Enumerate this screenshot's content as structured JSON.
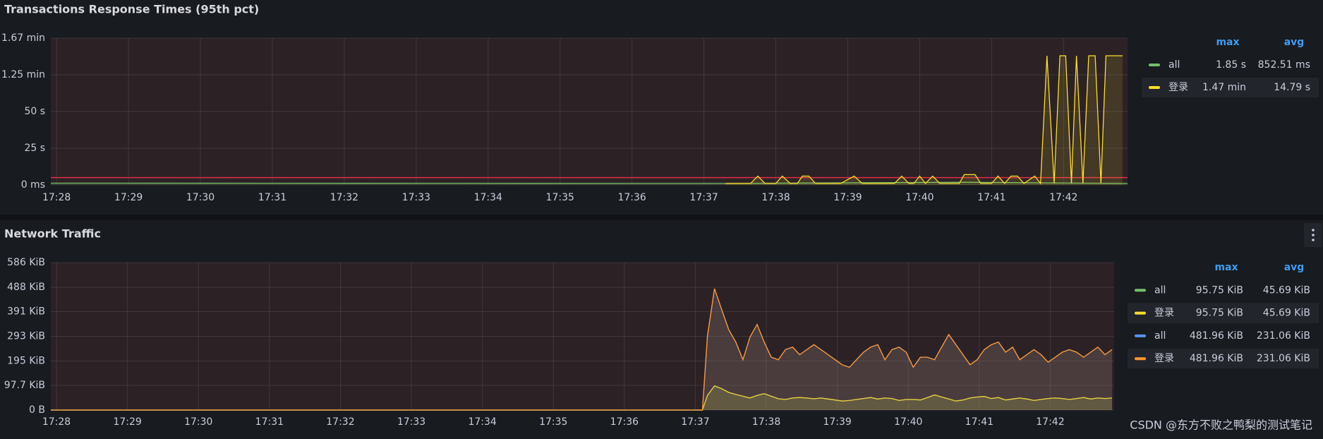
{
  "chart_data": [
    {
      "type": "line",
      "title": "Transactions Response Times (95th pct)",
      "xlim": [
        1047.92,
        1062.89
      ],
      "xticks": [
        {
          "value": 1048,
          "label": "17:28"
        },
        {
          "value": 1049,
          "label": "17:29"
        },
        {
          "value": 1050,
          "label": "17:30"
        },
        {
          "value": 1051,
          "label": "17:31"
        },
        {
          "value": 1052,
          "label": "17:32"
        },
        {
          "value": 1053,
          "label": "17:33"
        },
        {
          "value": 1054,
          "label": "17:34"
        },
        {
          "value": 1055,
          "label": "17:35"
        },
        {
          "value": 1056,
          "label": "17:36"
        },
        {
          "value": 1057,
          "label": "17:37"
        },
        {
          "value": 1058,
          "label": "17:38"
        },
        {
          "value": 1059,
          "label": "17:39"
        },
        {
          "value": 1060,
          "label": "17:40"
        },
        {
          "value": 1061,
          "label": "17:41"
        },
        {
          "value": 1062,
          "label": "17:42"
        }
      ],
      "ylim": [
        0,
        100
      ],
      "yticks": [
        {
          "value": 0,
          "label": "0 ms"
        },
        {
          "value": 25,
          "label": "25 s"
        },
        {
          "value": 50,
          "label": "50 s"
        },
        {
          "value": 75,
          "label": "1.25 min"
        },
        {
          "value": 100,
          "label": "1.67 min"
        }
      ],
      "grid": true,
      "threshold": {
        "value": 5,
        "color": "#e02f44"
      },
      "legend_columns": [
        "max",
        "avg"
      ],
      "series": [
        {
          "name": "all",
          "color": "#73bf69",
          "stats": [
            "1.85 s",
            "852.51 ms"
          ],
          "x": [
            1047.92,
            1057.3,
            1060.62,
            1062.89
          ],
          "values": [
            1.2,
            1.0,
            1.85,
            1.0
          ]
        },
        {
          "name": "登录",
          "color": "#fade2a",
          "stats": [
            "1.47 min",
            "14.79 s"
          ],
          "x": [
            1057.3,
            1057.65,
            1057.75,
            1057.85,
            1058.0,
            1058.09,
            1058.2,
            1058.3,
            1058.37,
            1058.46,
            1058.55,
            1058.9,
            1059.09,
            1059.2,
            1059.65,
            1059.75,
            1059.85,
            1059.92,
            1060.0,
            1060.08,
            1060.18,
            1060.28,
            1060.55,
            1060.62,
            1060.77,
            1060.85,
            1061.0,
            1061.09,
            1061.18,
            1061.27,
            1061.36,
            1061.45,
            1061.6,
            1061.68,
            1061.77,
            1061.87,
            1061.95,
            1062.03,
            1062.11,
            1062.18,
            1062.27,
            1062.35,
            1062.44,
            1062.52,
            1062.59,
            1062.82
          ],
          "values": [
            1,
            1,
            6,
            1,
            1,
            6,
            1,
            1,
            6,
            6,
            1,
            1,
            6,
            1,
            1,
            6,
            1,
            1,
            6,
            1,
            6,
            1,
            1,
            7,
            7,
            1,
            1,
            6,
            1,
            6,
            6,
            1,
            6,
            1,
            88,
            1,
            88,
            88,
            1,
            88,
            1,
            88,
            88,
            1,
            88,
            88
          ]
        }
      ]
    },
    {
      "type": "line",
      "title": "Network Traffic",
      "xlim": [
        1047.92,
        1062.9
      ],
      "xticks": [
        {
          "value": 1048,
          "label": "17:28"
        },
        {
          "value": 1049,
          "label": "17:29"
        },
        {
          "value": 1050,
          "label": "17:30"
        },
        {
          "value": 1051,
          "label": "17:31"
        },
        {
          "value": 1052,
          "label": "17:32"
        },
        {
          "value": 1053,
          "label": "17:33"
        },
        {
          "value": 1054,
          "label": "17:34"
        },
        {
          "value": 1055,
          "label": "17:35"
        },
        {
          "value": 1056,
          "label": "17:36"
        },
        {
          "value": 1057,
          "label": "17:37"
        },
        {
          "value": 1058,
          "label": "17:38"
        },
        {
          "value": 1059,
          "label": "17:39"
        },
        {
          "value": 1060,
          "label": "17:40"
        },
        {
          "value": 1061,
          "label": "17:41"
        },
        {
          "value": 1062,
          "label": "17:42"
        }
      ],
      "ylim": [
        0,
        586
      ],
      "yticks": [
        {
          "value": 0,
          "label": "0 B"
        },
        {
          "value": 97.7,
          "label": "97.7 KiB"
        },
        {
          "value": 195,
          "label": "195 KiB"
        },
        {
          "value": 293,
          "label": "293 KiB"
        },
        {
          "value": 391,
          "label": "391 KiB"
        },
        {
          "value": 488,
          "label": "488 KiB"
        },
        {
          "value": 586,
          "label": "586 KiB"
        }
      ],
      "grid": true,
      "legend_columns": [
        "max",
        "avg"
      ],
      "series": [
        {
          "name": "all",
          "color": "#73bf69",
          "stats": [
            "95.75 KiB",
            "45.69 KiB"
          ],
          "x": [
            1047.92,
            1057.1,
            1057.17,
            1057.27,
            1057.37,
            1057.47,
            1057.57,
            1057.67,
            1057.77,
            1057.87,
            1057.97,
            1058.07,
            1058.17,
            1058.27,
            1058.37,
            1058.47,
            1058.57,
            1058.67,
            1058.77,
            1058.87,
            1058.97,
            1059.07,
            1059.17,
            1059.27,
            1059.37,
            1059.47,
            1059.57,
            1059.67,
            1059.77,
            1059.87,
            1059.97,
            1060.07,
            1060.17,
            1060.27,
            1060.37,
            1060.47,
            1060.57,
            1060.67,
            1060.77,
            1060.87,
            1060.97,
            1061.07,
            1061.17,
            1061.27,
            1061.37,
            1061.47,
            1061.57,
            1061.67,
            1061.77,
            1061.87,
            1061.97,
            1062.07,
            1062.17,
            1062.27,
            1062.37,
            1062.47,
            1062.57,
            1062.67,
            1062.77,
            1062.87
          ],
          "values": [
            0,
            0,
            58,
            96,
            85,
            70,
            62,
            55,
            48,
            58,
            65,
            55,
            45,
            42,
            48,
            50,
            48,
            45,
            48,
            44,
            40,
            36,
            38,
            42,
            46,
            50,
            44,
            48,
            46,
            38,
            42,
            42,
            40,
            50,
            60,
            52,
            44,
            36,
            40,
            48,
            52,
            54,
            46,
            50,
            40,
            44,
            48,
            44,
            38,
            42,
            46,
            48,
            46,
            42,
            46,
            50,
            44,
            48,
            46,
            48
          ]
        },
        {
          "name": "登录",
          "color": "#fade2a",
          "stats": [
            "95.75 KiB",
            "45.69 KiB"
          ],
          "x": [
            1047.92,
            1057.1,
            1057.17,
            1057.27,
            1057.37,
            1057.47,
            1057.57,
            1057.67,
            1057.77,
            1057.87,
            1057.97,
            1058.07,
            1058.17,
            1058.27,
            1058.37,
            1058.47,
            1058.57,
            1058.67,
            1058.77,
            1058.87,
            1058.97,
            1059.07,
            1059.17,
            1059.27,
            1059.37,
            1059.47,
            1059.57,
            1059.67,
            1059.77,
            1059.87,
            1059.97,
            1060.07,
            1060.17,
            1060.27,
            1060.37,
            1060.47,
            1060.57,
            1060.67,
            1060.77,
            1060.87,
            1060.97,
            1061.07,
            1061.17,
            1061.27,
            1061.37,
            1061.47,
            1061.57,
            1061.67,
            1061.77,
            1061.87,
            1061.97,
            1062.07,
            1062.17,
            1062.27,
            1062.37,
            1062.47,
            1062.57,
            1062.67,
            1062.77,
            1062.87
          ],
          "values": [
            0,
            0,
            58,
            96,
            85,
            70,
            62,
            55,
            48,
            58,
            65,
            55,
            45,
            42,
            48,
            50,
            48,
            45,
            48,
            44,
            40,
            36,
            38,
            42,
            46,
            50,
            44,
            48,
            46,
            38,
            42,
            42,
            40,
            50,
            60,
            52,
            44,
            36,
            40,
            48,
            52,
            54,
            46,
            50,
            40,
            44,
            48,
            44,
            38,
            42,
            46,
            48,
            46,
            42,
            46,
            50,
            44,
            48,
            46,
            48
          ]
        },
        {
          "name": "all",
          "color": "#5794f2",
          "stats": [
            "481.96 KiB",
            "231.06 KiB"
          ],
          "x": [
            1047.92,
            1057.1,
            1057.17,
            1057.27,
            1057.37,
            1057.47,
            1057.57,
            1057.67,
            1057.77,
            1057.87,
            1057.97,
            1058.07,
            1058.17,
            1058.27,
            1058.37,
            1058.47,
            1058.57,
            1058.67,
            1058.77,
            1058.87,
            1058.97,
            1059.07,
            1059.17,
            1059.27,
            1059.37,
            1059.47,
            1059.57,
            1059.67,
            1059.77,
            1059.87,
            1059.97,
            1060.07,
            1060.17,
            1060.27,
            1060.37,
            1060.47,
            1060.57,
            1060.67,
            1060.77,
            1060.87,
            1060.97,
            1061.07,
            1061.17,
            1061.27,
            1061.37,
            1061.47,
            1061.57,
            1061.67,
            1061.77,
            1061.87,
            1061.97,
            1062.07,
            1062.17,
            1062.27,
            1062.37,
            1062.47,
            1062.57,
            1062.67,
            1062.77,
            1062.87
          ],
          "values": [
            0,
            0,
            293,
            482,
            400,
            320,
            270,
            200,
            290,
            340,
            270,
            210,
            200,
            240,
            250,
            220,
            240,
            260,
            240,
            220,
            200,
            180,
            170,
            200,
            230,
            250,
            260,
            200,
            240,
            250,
            230,
            170,
            210,
            210,
            200,
            250,
            300,
            260,
            220,
            180,
            200,
            240,
            260,
            270,
            230,
            250,
            200,
            220,
            240,
            220,
            190,
            210,
            230,
            240,
            230,
            210,
            230,
            250,
            220,
            240
          ]
        },
        {
          "name": "登录",
          "color": "#ff9830",
          "stats": [
            "481.96 KiB",
            "231.06 KiB"
          ],
          "x": [
            1047.92,
            1057.1,
            1057.17,
            1057.27,
            1057.37,
            1057.47,
            1057.57,
            1057.67,
            1057.77,
            1057.87,
            1057.97,
            1058.07,
            1058.17,
            1058.27,
            1058.37,
            1058.47,
            1058.57,
            1058.67,
            1058.77,
            1058.87,
            1058.97,
            1059.07,
            1059.17,
            1059.27,
            1059.37,
            1059.47,
            1059.57,
            1059.67,
            1059.77,
            1059.87,
            1059.97,
            1060.07,
            1060.17,
            1060.27,
            1060.37,
            1060.47,
            1060.57,
            1060.67,
            1060.77,
            1060.87,
            1060.97,
            1061.07,
            1061.17,
            1061.27,
            1061.37,
            1061.47,
            1061.57,
            1061.67,
            1061.77,
            1061.87,
            1061.97,
            1062.07,
            1062.17,
            1062.27,
            1062.37,
            1062.47,
            1062.57,
            1062.67,
            1062.77,
            1062.87
          ],
          "values": [
            0,
            0,
            293,
            482,
            400,
            320,
            270,
            200,
            290,
            340,
            270,
            210,
            200,
            240,
            250,
            220,
            240,
            260,
            240,
            220,
            200,
            180,
            170,
            200,
            230,
            250,
            260,
            200,
            240,
            250,
            230,
            170,
            210,
            210,
            200,
            250,
            300,
            260,
            220,
            180,
            200,
            240,
            260,
            270,
            230,
            250,
            200,
            220,
            240,
            220,
            190,
            210,
            230,
            240,
            230,
            210,
            230,
            250,
            220,
            240
          ]
        }
      ]
    }
  ],
  "watermark": "CSDN @东方不败之鸭梨的测试笔记"
}
